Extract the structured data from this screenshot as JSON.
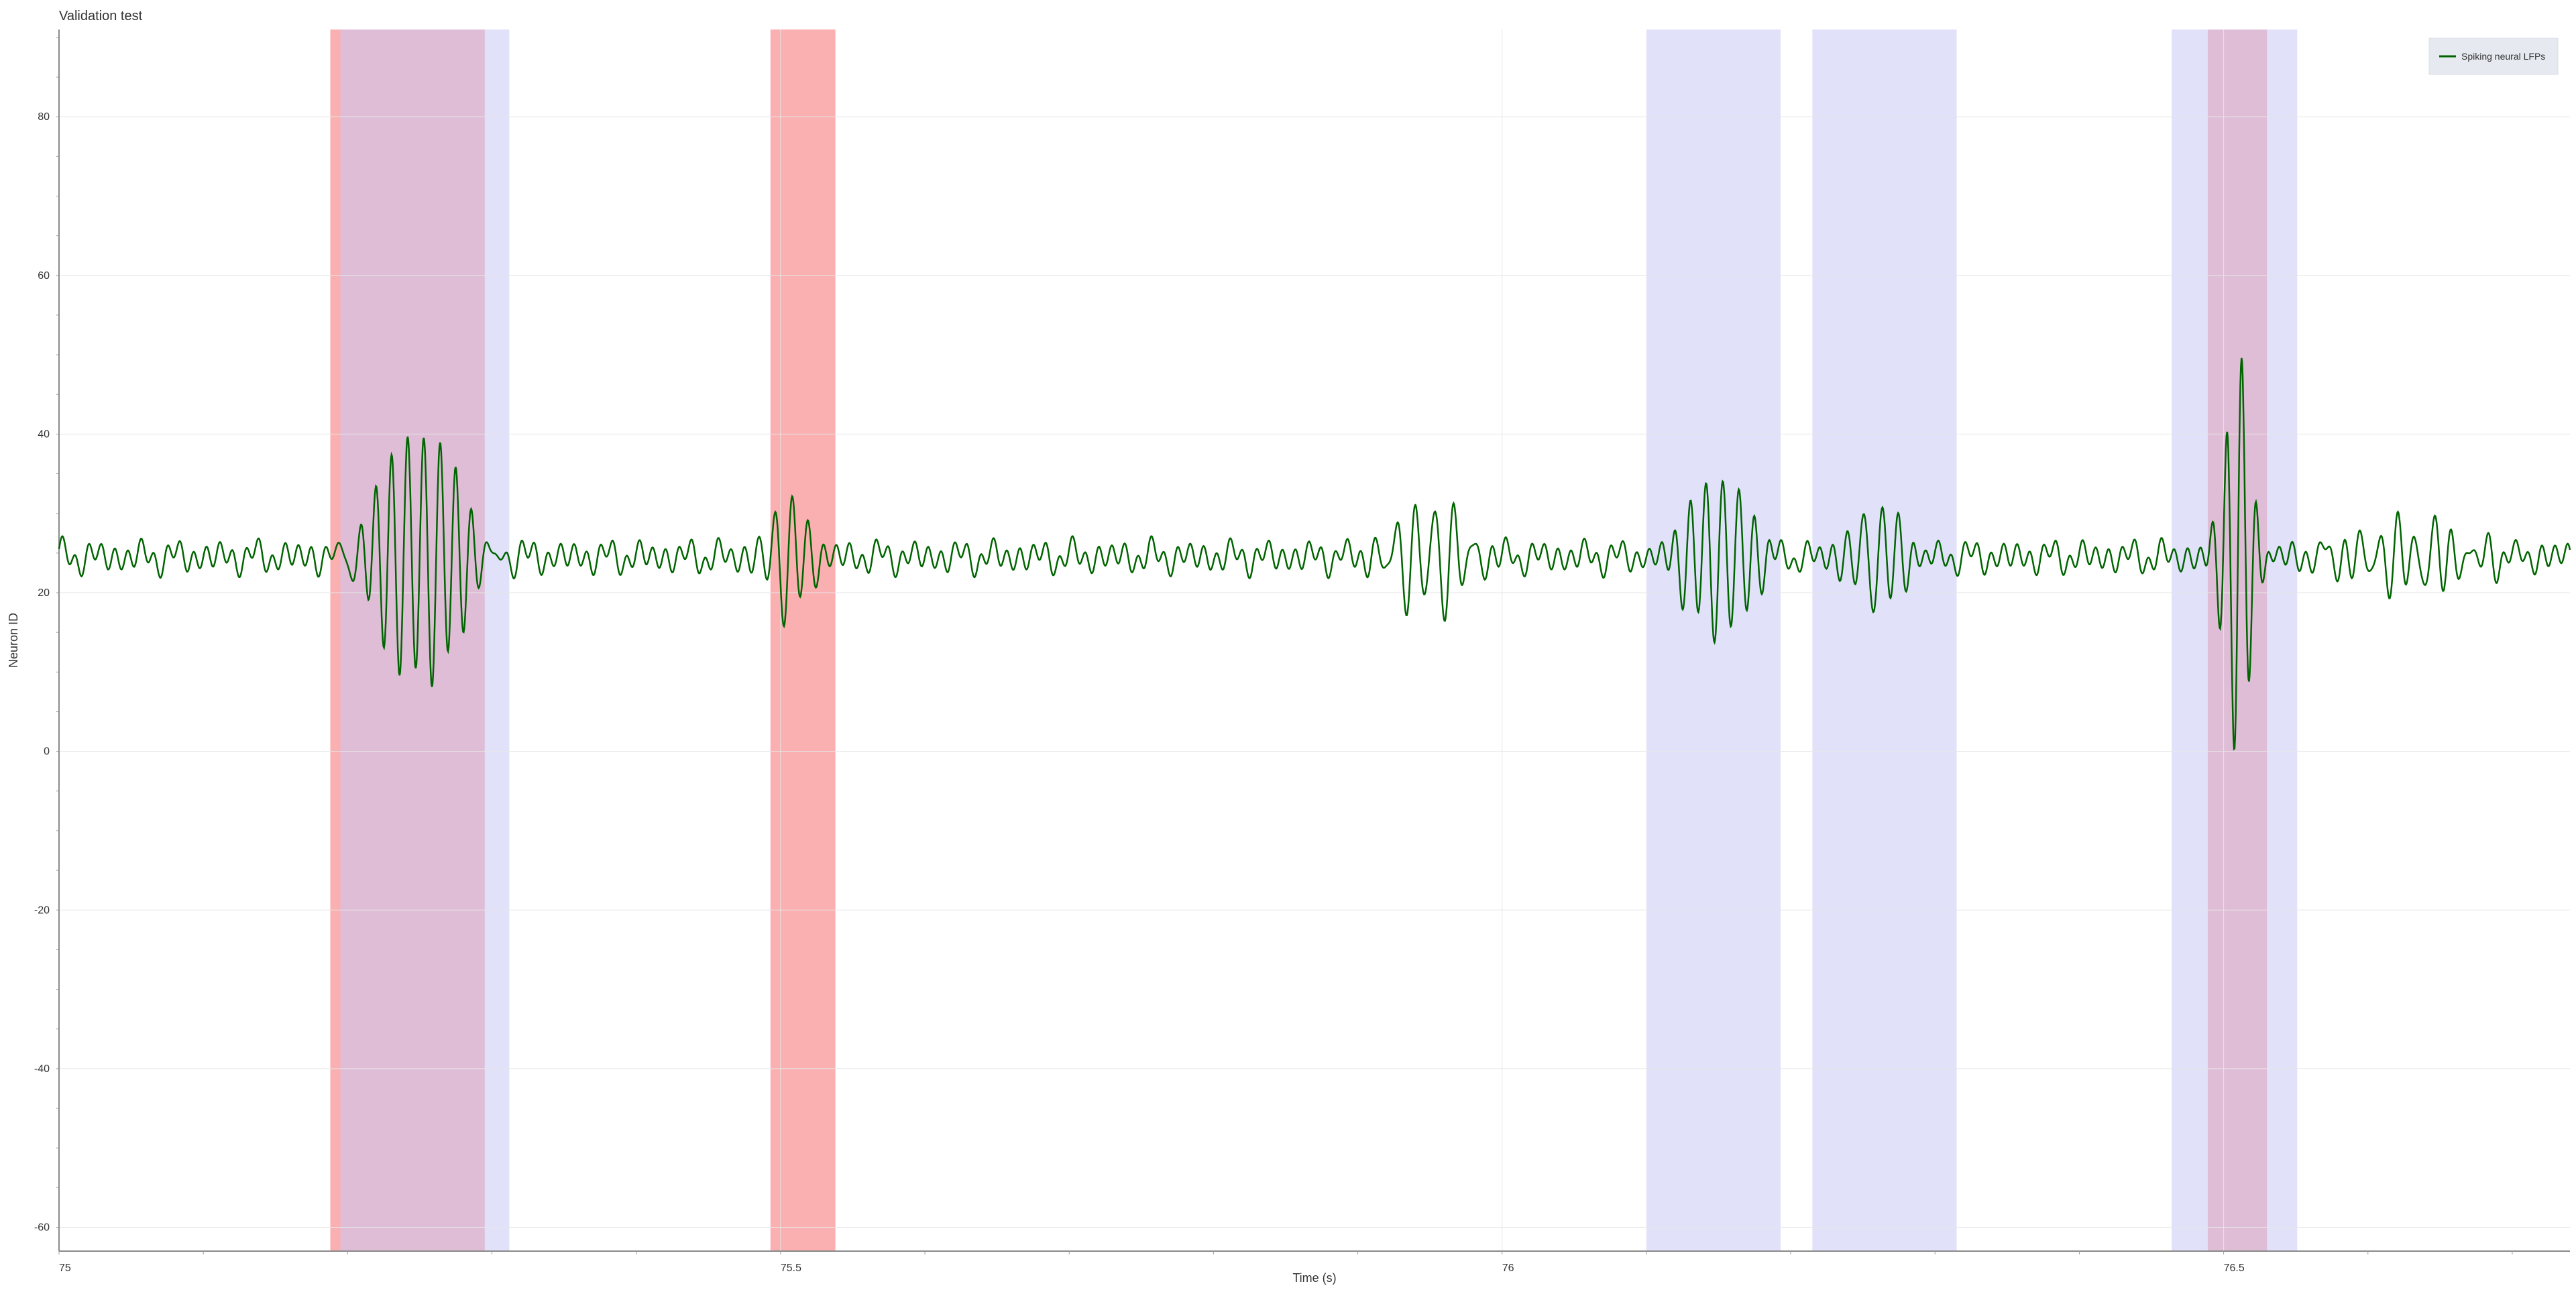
{
  "chart_data": {
    "type": "line",
    "title": "Validation test",
    "xlabel": "Time (s)",
    "ylabel": "Neuron ID",
    "xlim": [
      75.0,
      76.74
    ],
    "ylim": [
      -63,
      91
    ],
    "grid": true,
    "x_ticks": [
      75,
      75.5,
      76,
      76.5
    ],
    "x_tick_labels": [
      "75",
      "75.5",
      "76",
      "76.5"
    ],
    "y_ticks": [
      -60,
      -40,
      -20,
      0,
      20,
      40,
      60,
      80
    ],
    "y_tick_labels": [
      "-60",
      "-40",
      "-20",
      "0",
      "20",
      "40",
      "60",
      "80"
    ],
    "legend": {
      "placement": "top-right",
      "entries": [
        {
          "label": "Spiking neural LFPs",
          "color": "#006400"
        }
      ]
    },
    "series": [
      {
        "name": "Spiking neural LFPs",
        "color": "#006400",
        "baseline": 24.5
      }
    ],
    "highlight_regions": {
      "red": {
        "color": "#f67a7d",
        "opacity": 0.6,
        "intervals": [
          [
            75.188,
            75.295
          ],
          [
            75.493,
            75.538
          ],
          [
            76.489,
            76.53
          ]
        ]
      },
      "blue": {
        "color": "#c9c9f6",
        "opacity": 0.55,
        "intervals": [
          [
            75.195,
            75.312
          ],
          [
            76.1,
            76.193
          ],
          [
            76.215,
            76.315
          ],
          [
            76.464,
            76.551
          ]
        ]
      }
    },
    "bursts": [
      {
        "center": 75.25,
        "width": 0.035,
        "amplitude": 16.5,
        "frequency": 90
      },
      {
        "center": 75.505,
        "width": 0.015,
        "amplitude": 9,
        "frequency": 90
      },
      {
        "center": 75.95,
        "width": 0.03,
        "amplitude": 7,
        "frequency": 75
      },
      {
        "center": 76.15,
        "width": 0.025,
        "amplitude": 11,
        "frequency": 90
      },
      {
        "center": 76.26,
        "width": 0.02,
        "amplitude": 7,
        "frequency": 85
      },
      {
        "center": 76.51,
        "width": 0.012,
        "amplitude": 24,
        "frequency": 95
      },
      {
        "center": 76.63,
        "width": 0.05,
        "amplitude": 4,
        "frequency": 80
      }
    ],
    "background_noise": {
      "amplitude": 1.3,
      "frequency": 110
    }
  }
}
